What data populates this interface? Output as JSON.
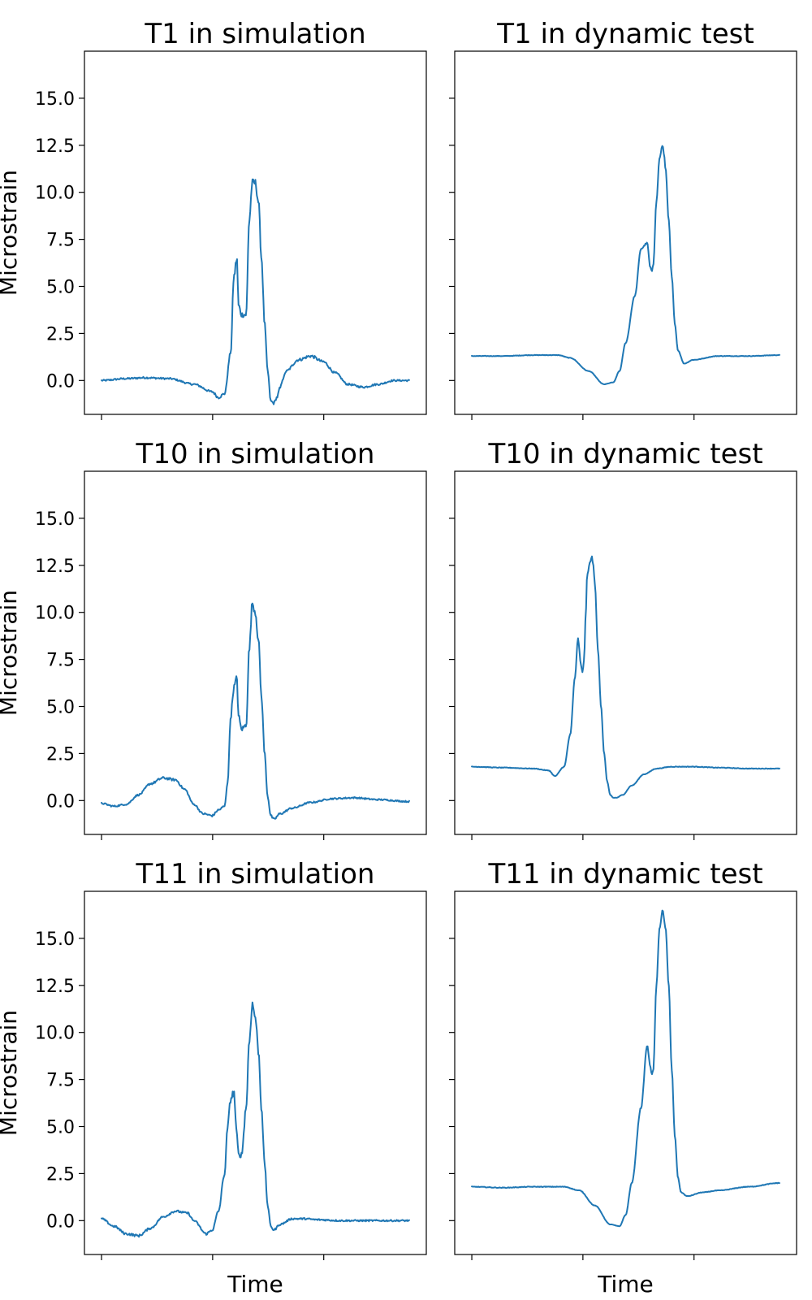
{
  "chart_data": [
    {
      "type": "line",
      "title": "T1 in simulation",
      "xlabel": "",
      "ylabel": "Microstrain",
      "ylim": [
        -1.8,
        17.5
      ],
      "yticks": [
        "0.0",
        "2.5",
        "5.0",
        "7.5",
        "10.0",
        "12.5",
        "15.0"
      ],
      "grid": false,
      "series": [
        {
          "color": "#1f77b4",
          "noise": 0.35,
          "x": [
            0,
            0.08,
            0.14,
            0.22,
            0.3,
            0.36,
            0.38,
            0.4,
            0.42,
            0.43,
            0.44,
            0.445,
            0.455,
            0.47,
            0.48,
            0.49,
            0.5,
            0.51,
            0.52,
            0.53,
            0.54,
            0.55,
            0.56,
            0.57,
            0.58,
            0.59,
            0.6,
            0.64,
            0.68,
            0.72,
            0.76,
            0.8,
            0.85,
            0.9,
            0.95,
            1.0
          ],
          "y": [
            0,
            0.1,
            0.15,
            0.1,
            -0.2,
            -0.6,
            -0.9,
            -0.7,
            1.5,
            5.5,
            6.5,
            4.0,
            3.5,
            3.5,
            8.5,
            10.5,
            10.5,
            9.5,
            6.5,
            3.0,
            0.5,
            -1.1,
            -1.2,
            -0.9,
            -0.4,
            0.1,
            0.5,
            1.1,
            1.3,
            1.0,
            0.4,
            -0.2,
            -0.35,
            -0.2,
            0,
            0
          ]
        }
      ]
    },
    {
      "type": "line",
      "title": "T1 in dynamic test",
      "xlabel": "",
      "ylabel": "",
      "ylim": [
        -1.8,
        17.5
      ],
      "grid": false,
      "series": [
        {
          "color": "#1f77b4",
          "noise": 0.06,
          "x": [
            0,
            0.1,
            0.2,
            0.28,
            0.32,
            0.38,
            0.43,
            0.46,
            0.48,
            0.5,
            0.53,
            0.55,
            0.57,
            0.58,
            0.585,
            0.59,
            0.6,
            0.61,
            0.62,
            0.625,
            0.63,
            0.64,
            0.65,
            0.66,
            0.67,
            0.69,
            0.72,
            0.8,
            0.9,
            1.0
          ],
          "y": [
            1.3,
            1.3,
            1.35,
            1.35,
            1.2,
            0.5,
            -0.2,
            -0.1,
            0.5,
            2.0,
            4.5,
            7.0,
            7.3,
            6.0,
            5.8,
            6.2,
            9.5,
            11.8,
            12.5,
            12.0,
            11.2,
            8.5,
            5.5,
            3.0,
            1.6,
            0.9,
            1.1,
            1.3,
            1.3,
            1.35
          ]
        }
      ]
    },
    {
      "type": "line",
      "title": "T10 in simulation",
      "xlabel": "",
      "ylabel": "Microstrain",
      "ylim": [
        -1.8,
        17.5
      ],
      "yticks": [
        "0.0",
        "2.5",
        "5.0",
        "7.5",
        "10.0",
        "12.5",
        "15.0"
      ],
      "grid": false,
      "series": [
        {
          "color": "#1f77b4",
          "noise": 0.3,
          "x": [
            0,
            0.04,
            0.08,
            0.12,
            0.16,
            0.2,
            0.24,
            0.27,
            0.3,
            0.33,
            0.36,
            0.38,
            0.4,
            0.41,
            0.42,
            0.43,
            0.44,
            0.445,
            0.455,
            0.47,
            0.48,
            0.49,
            0.5,
            0.51,
            0.52,
            0.53,
            0.54,
            0.55,
            0.56,
            0.58,
            0.62,
            0.68,
            0.75,
            0.82,
            0.9,
            1.0
          ],
          "y": [
            -0.15,
            -0.3,
            -0.2,
            0.3,
            0.9,
            1.2,
            1.1,
            0.6,
            -0.2,
            -0.7,
            -0.8,
            -0.5,
            -0.3,
            1.0,
            4.5,
            6.0,
            6.5,
            4.5,
            3.8,
            4.0,
            8.0,
            10.5,
            10.0,
            8.5,
            5.5,
            2.5,
            0.2,
            -0.8,
            -1.0,
            -0.7,
            -0.4,
            -0.1,
            0.1,
            0.15,
            0.05,
            -0.05
          ]
        }
      ]
    },
    {
      "type": "line",
      "title": "T10 in dynamic test",
      "xlabel": "",
      "ylabel": "",
      "ylim": [
        -1.8,
        17.5
      ],
      "grid": false,
      "series": [
        {
          "color": "#1f77b4",
          "noise": 0.06,
          "x": [
            0,
            0.1,
            0.2,
            0.25,
            0.27,
            0.3,
            0.32,
            0.335,
            0.345,
            0.355,
            0.36,
            0.365,
            0.37,
            0.375,
            0.385,
            0.39,
            0.395,
            0.4,
            0.41,
            0.42,
            0.43,
            0.44,
            0.45,
            0.46,
            0.47,
            0.49,
            0.52,
            0.56,
            0.6,
            0.65,
            0.72,
            0.8,
            0.9,
            1.0
          ],
          "y": [
            1.8,
            1.75,
            1.7,
            1.6,
            1.3,
            1.8,
            3.5,
            6.5,
            8.6,
            7.2,
            6.8,
            7.5,
            9.8,
            12.0,
            12.7,
            13.0,
            12.5,
            11.5,
            8.0,
            5.0,
            2.5,
            1.0,
            0.3,
            0.15,
            0.15,
            0.3,
            0.8,
            1.4,
            1.7,
            1.8,
            1.8,
            1.75,
            1.7,
            1.7
          ]
        }
      ]
    },
    {
      "type": "line",
      "title": "T11 in simulation",
      "xlabel": "Time",
      "ylabel": "Microstrain",
      "ylim": [
        -1.8,
        17.5
      ],
      "yticks": [
        "0.0",
        "2.5",
        "5.0",
        "7.5",
        "10.0",
        "12.5",
        "15.0"
      ],
      "grid": false,
      "series": [
        {
          "color": "#1f77b4",
          "noise": 0.35,
          "x": [
            0,
            0.04,
            0.08,
            0.12,
            0.16,
            0.2,
            0.24,
            0.28,
            0.3,
            0.34,
            0.36,
            0.38,
            0.4,
            0.41,
            0.42,
            0.43,
            0.44,
            0.445,
            0.455,
            0.47,
            0.48,
            0.49,
            0.5,
            0.51,
            0.52,
            0.53,
            0.54,
            0.55,
            0.56,
            0.58,
            0.62,
            0.66,
            0.7,
            0.78,
            0.85,
            0.92,
            1.0
          ],
          "y": [
            0.1,
            -0.3,
            -0.7,
            -0.8,
            -0.4,
            0.2,
            0.5,
            0.4,
            0.0,
            -0.7,
            -0.5,
            0.5,
            2.5,
            5.0,
            6.5,
            6.8,
            4.5,
            3.5,
            3.5,
            6.0,
            9.5,
            11.5,
            10.8,
            9.0,
            6.0,
            3.0,
            0.8,
            -0.3,
            -0.5,
            -0.2,
            0.1,
            0.1,
            0.05,
            0.0,
            0.0,
            0.0,
            0.0
          ]
        }
      ]
    },
    {
      "type": "line",
      "title": "T11 in dynamic test",
      "xlabel": "Time",
      "ylabel": "",
      "ylim": [
        -1.8,
        17.5
      ],
      "grid": false,
      "series": [
        {
          "color": "#1f77b4",
          "noise": 0.06,
          "x": [
            0,
            0.1,
            0.2,
            0.3,
            0.35,
            0.4,
            0.45,
            0.48,
            0.5,
            0.52,
            0.55,
            0.57,
            0.58,
            0.585,
            0.59,
            0.6,
            0.61,
            0.62,
            0.63,
            0.64,
            0.65,
            0.66,
            0.67,
            0.68,
            0.7,
            0.75,
            0.8,
            0.9,
            1.0
          ],
          "y": [
            1.8,
            1.75,
            1.8,
            1.8,
            1.6,
            0.8,
            -0.2,
            -0.3,
            0.3,
            2.0,
            6.0,
            9.3,
            8.2,
            7.8,
            8.0,
            12.5,
            15.5,
            16.5,
            15.5,
            12.5,
            8.0,
            4.5,
            2.3,
            1.5,
            1.3,
            1.5,
            1.6,
            1.8,
            2.0
          ]
        }
      ]
    }
  ]
}
